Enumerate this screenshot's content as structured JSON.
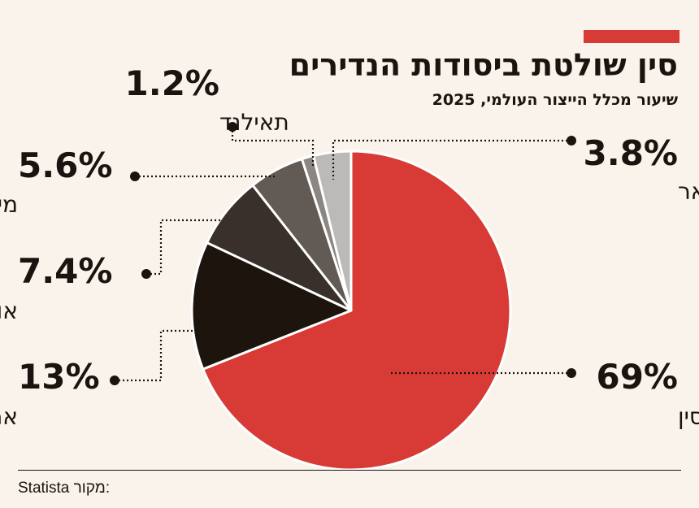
{
  "header": {
    "title": "סין שולטת ביסודות הנדירים",
    "subtitle": "שיעור מכלל הייצור העולמי, 2025"
  },
  "source": {
    "label": "מקור:",
    "name": "Statista"
  },
  "chart_data": {
    "type": "pie",
    "slices": [
      {
        "label": "סין",
        "value_text": "69%",
        "value": 69,
        "color": "#d83a35"
      },
      {
        "label": "ארה״ב",
        "value_text": "13%",
        "value": 13,
        "color": "#1c140d"
      },
      {
        "label": "אוסטרליה",
        "value_text": "7.4%",
        "value": 7.4,
        "color": "#3a302b"
      },
      {
        "label": "מיאנמר",
        "value_text": "5.6%",
        "value": 5.6,
        "color": "#625a55"
      },
      {
        "label": "תאילנד",
        "value_text": "1.2%",
        "value": 1.2,
        "color": "#8c8683"
      },
      {
        "label": "שאר",
        "value_text": "3.8%",
        "value": 3.8,
        "color": "#bcbab9"
      }
    ]
  }
}
